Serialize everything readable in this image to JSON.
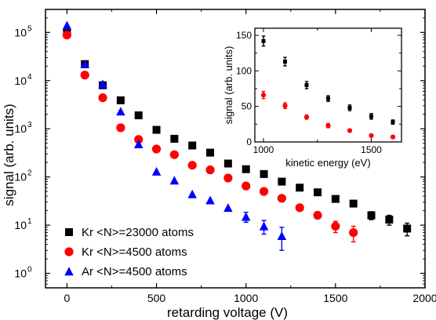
{
  "chart_data": [
    {
      "type": "scatter",
      "xlabel": "retarding voltage (V)",
      "ylabel": "signal (arb. units)",
      "xlim": [
        -120,
        2000
      ],
      "ylim": [
        0.5,
        300000
      ],
      "y_scale": "log",
      "x_ticks": [
        0,
        500,
        1000,
        1500,
        2000
      ],
      "x_tick_labels": [
        "0",
        "500",
        "1000",
        "1500",
        "2000"
      ],
      "y_ticks": [
        1,
        10,
        100,
        1000,
        10000,
        100000
      ],
      "y_tick_labels": [
        "10⁰",
        "10¹",
        "10²",
        "10³",
        "10⁴",
        "10⁵"
      ],
      "legend_position": "bottom-left",
      "series": [
        {
          "name": "Kr <N>=23000 atoms",
          "marker": "square",
          "color": "#000000",
          "x": [
            0,
            100,
            200,
            300,
            400,
            500,
            600,
            700,
            800,
            900,
            1000,
            1100,
            1200,
            1300,
            1400,
            1500,
            1600,
            1700,
            1800,
            1900
          ],
          "y": [
            100000,
            22000,
            8000,
            3900,
            1900,
            950,
            620,
            450,
            320,
            190,
            145,
            115,
            80,
            60,
            48,
            35,
            28,
            16,
            13,
            8.5
          ],
          "err": [
            0,
            0,
            0,
            0,
            0,
            0,
            0,
            0,
            0,
            0,
            0,
            0,
            0,
            0,
            0,
            0,
            0,
            3,
            3,
            2.5
          ]
        },
        {
          "name": "Kr <N>=4500 atoms",
          "marker": "circle",
          "color": "#ff0000",
          "x": [
            0,
            100,
            200,
            300,
            400,
            500,
            600,
            700,
            800,
            900,
            1000,
            1100,
            1200,
            1300,
            1400,
            1500,
            1600
          ],
          "y": [
            88000,
            13000,
            4400,
            1050,
            600,
            380,
            290,
            175,
            140,
            95,
            65,
            50,
            36,
            23,
            16,
            9.5,
            7
          ],
          "err": [
            0,
            0,
            0,
            0,
            0,
            0,
            0,
            0,
            0,
            0,
            0,
            0,
            0,
            0,
            0,
            2.5,
            2.5
          ]
        },
        {
          "name": "Ar <N>=4500 atoms",
          "marker": "triangle",
          "color": "#0000ff",
          "x": [
            0,
            100,
            200,
            300,
            400,
            500,
            600,
            700,
            800,
            900,
            1000,
            1100,
            1200
          ],
          "y": [
            140000,
            22000,
            8500,
            2300,
            480,
            130,
            85,
            44,
            33,
            23,
            15,
            9.5,
            6
          ],
          "err": [
            0,
            0,
            0,
            0,
            0,
            0,
            0,
            0,
            0,
            0,
            3.5,
            3,
            3
          ]
        }
      ]
    },
    {
      "type": "scatter",
      "xlabel": "kinetic energy (eV)",
      "ylabel": "signal (arb. units)",
      "xlim": [
        960,
        1640
      ],
      "ylim": [
        0,
        160
      ],
      "x_ticks": [
        1000,
        1500
      ],
      "x_tick_labels": [
        "1000",
        "1500"
      ],
      "y_ticks": [
        0,
        50,
        100,
        150
      ],
      "y_tick_labels": [
        "0",
        "50",
        "100",
        "150"
      ],
      "series": [
        {
          "color": "#000000",
          "marker": "square",
          "x": [
            1000,
            1100,
            1200,
            1300,
            1400,
            1500,
            1600
          ],
          "y": [
            142,
            113,
            80,
            61,
            48,
            36,
            28
          ],
          "err": [
            7,
            6,
            5,
            4,
            4,
            4,
            3
          ]
        },
        {
          "color": "#ff0000",
          "marker": "circle",
          "x": [
            1000,
            1100,
            1200,
            1300,
            1400,
            1500,
            1600
          ],
          "y": [
            66,
            51,
            35,
            23,
            16,
            9,
            7
          ],
          "err": [
            5,
            4,
            3,
            3,
            2,
            2,
            2
          ]
        }
      ]
    }
  ]
}
